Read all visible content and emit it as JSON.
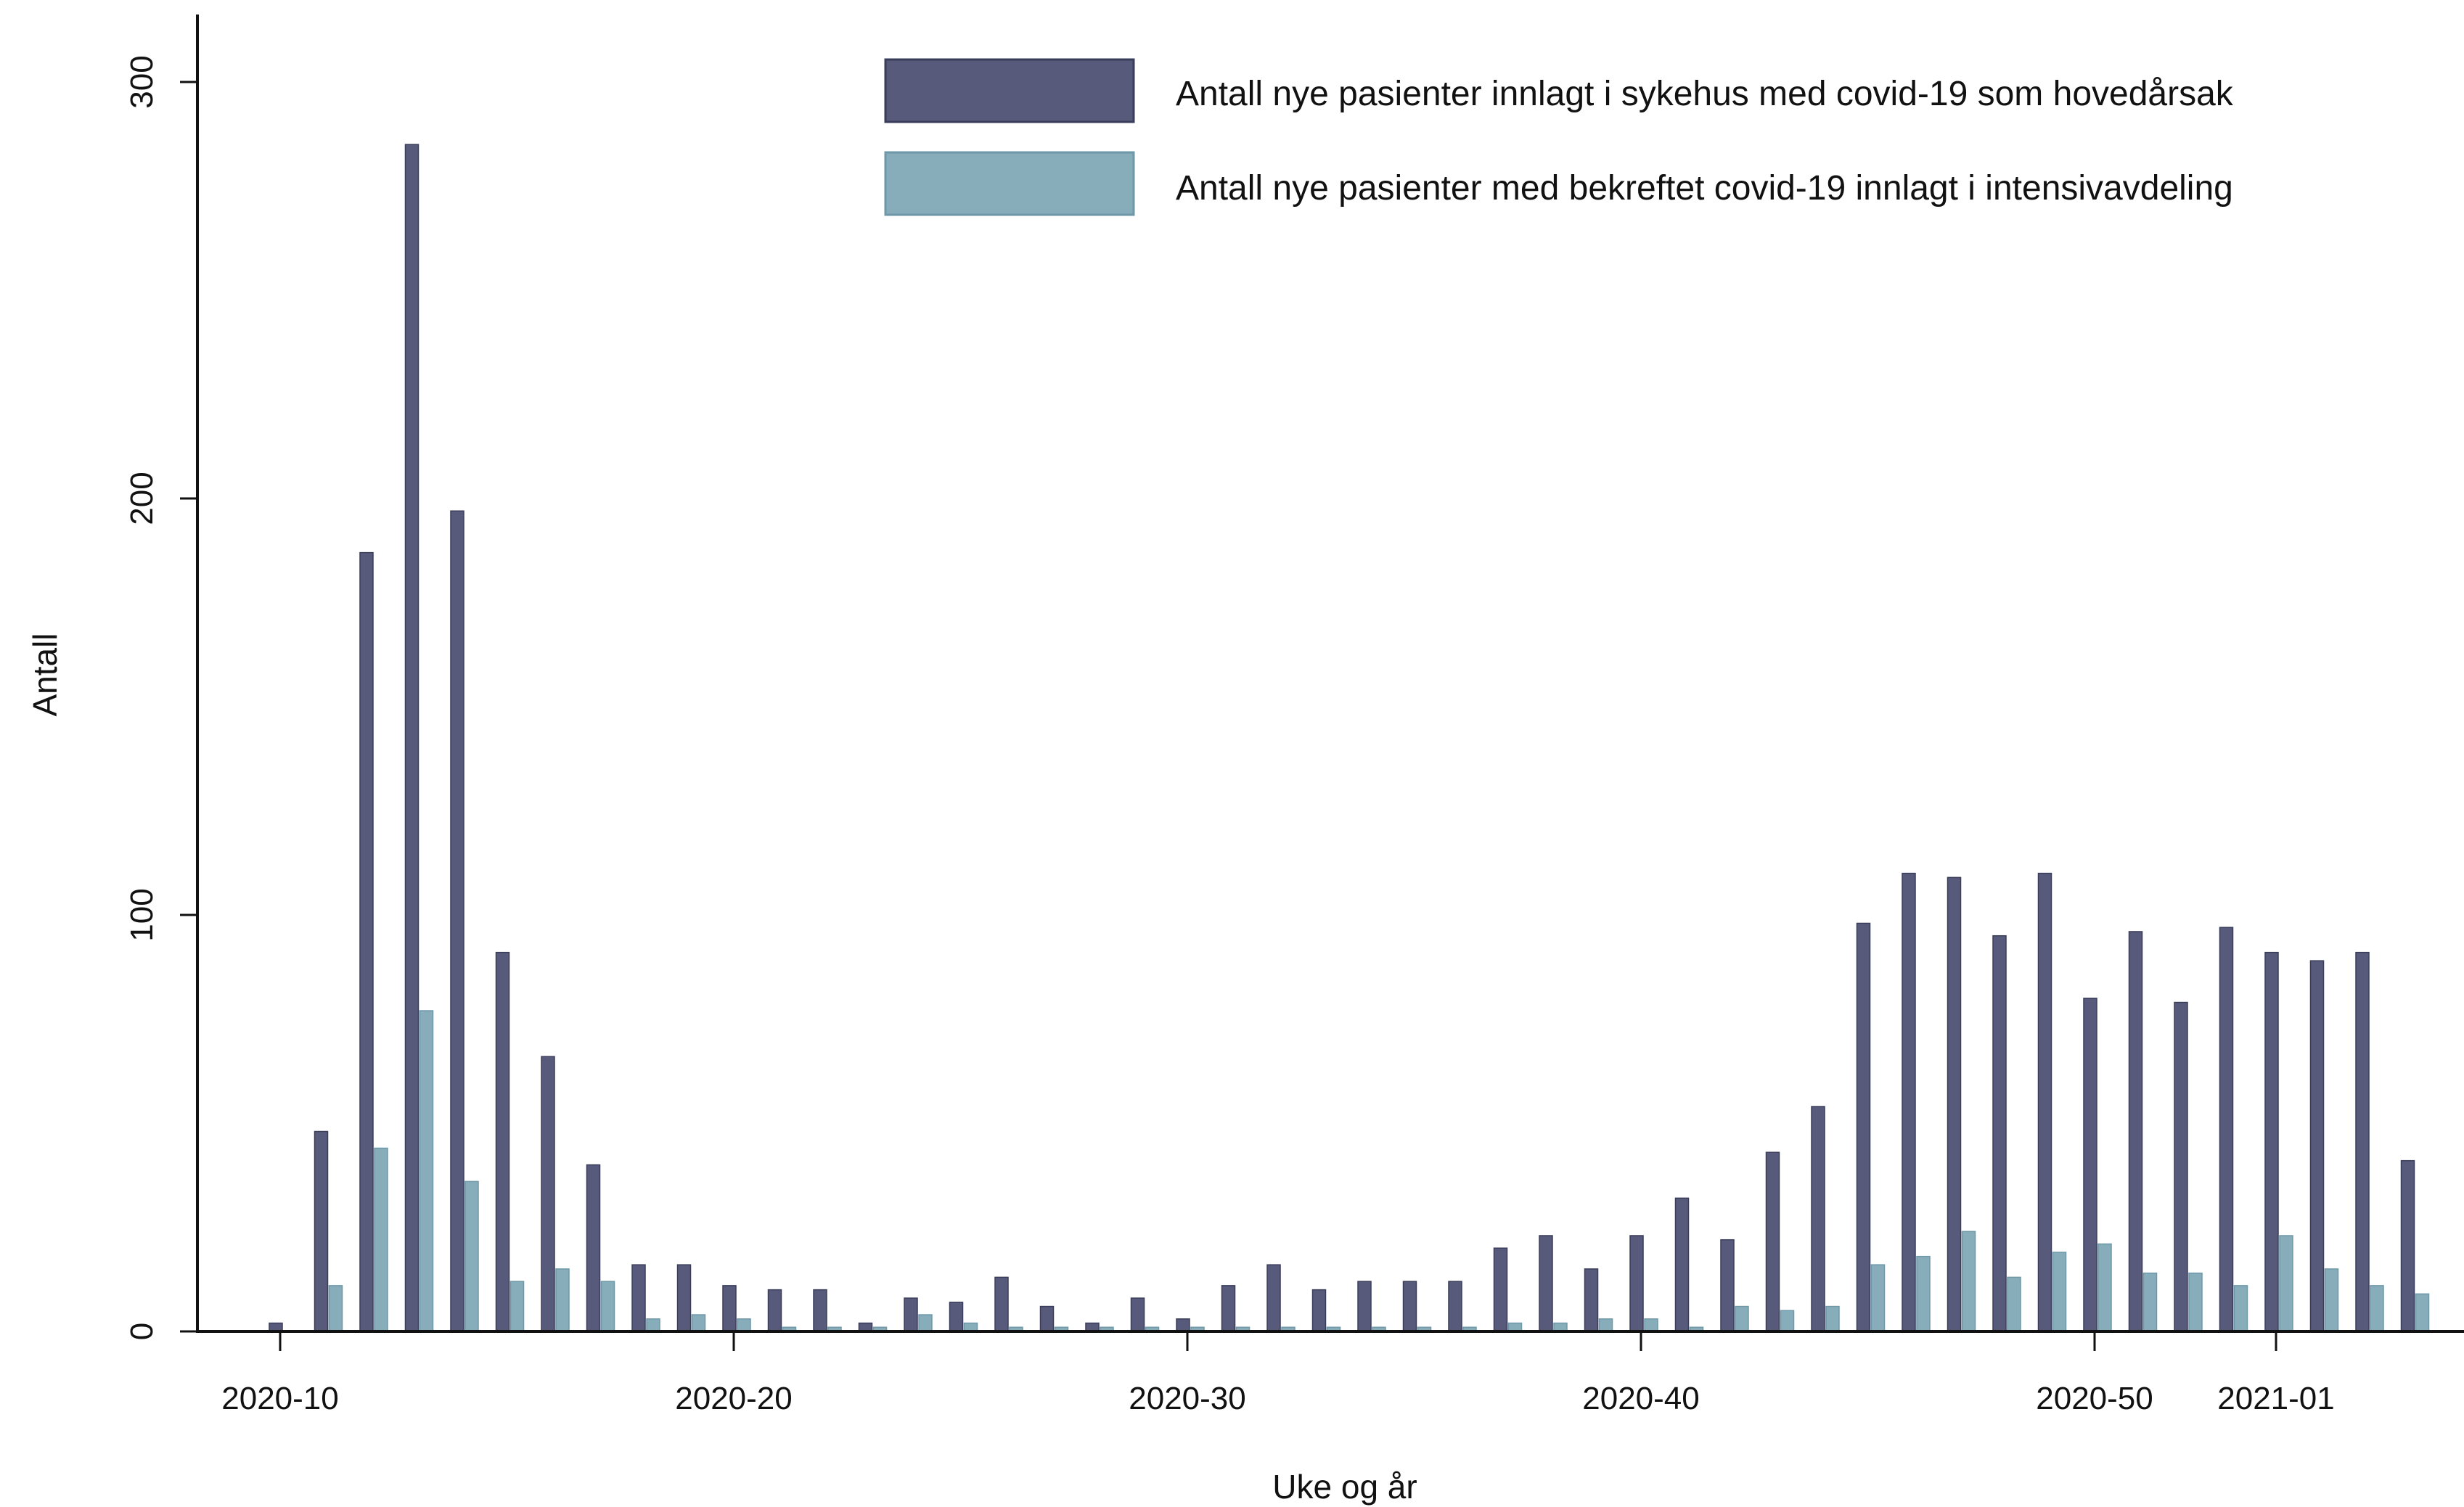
{
  "chart_data": {
    "type": "bar",
    "xlabel": "Uke og år",
    "ylabel": "Antall",
    "ylim": [
      0,
      320
    ],
    "yticks": [
      0,
      100,
      200,
      300
    ],
    "xtick_labels": [
      "2020-10",
      "2020-20",
      "2020-30",
      "2020-40",
      "2020-50",
      "2021-01"
    ],
    "legend_placement": "top-right",
    "categories": [
      "2020-10",
      "2020-11",
      "2020-12",
      "2020-13",
      "2020-14",
      "2020-15",
      "2020-16",
      "2020-17",
      "2020-18",
      "2020-19",
      "2020-20",
      "2020-21",
      "2020-22",
      "2020-23",
      "2020-24",
      "2020-25",
      "2020-26",
      "2020-27",
      "2020-28",
      "2020-29",
      "2020-30",
      "2020-31",
      "2020-32",
      "2020-33",
      "2020-34",
      "2020-35",
      "2020-36",
      "2020-37",
      "2020-38",
      "2020-39",
      "2020-40",
      "2020-41",
      "2020-42",
      "2020-43",
      "2020-44",
      "2020-45",
      "2020-46",
      "2020-47",
      "2020-48",
      "2020-49",
      "2020-50",
      "2020-51",
      "2020-52",
      "2020-53",
      "2021-01",
      "2021-02",
      "2021-03",
      "2021-04"
    ],
    "series": [
      {
        "name": "Antall nye pasienter innlagt i sykehus med covid-19 som hovedårsak",
        "color": "#575a7b",
        "values": [
          2,
          48,
          187,
          285,
          197,
          91,
          66,
          40,
          16,
          16,
          11,
          10,
          10,
          2,
          8,
          7,
          13,
          6,
          2,
          8,
          3,
          11,
          16,
          10,
          12,
          12,
          12,
          20,
          23,
          15,
          23,
          32,
          22,
          43,
          54,
          98,
          110,
          109,
          95,
          110,
          80,
          96,
          79,
          97,
          91,
          89,
          91,
          41
        ]
      },
      {
        "name": "Antall nye pasienter med bekreftet covid-19 innlagt i intensivavdeling",
        "color": "#87adbb",
        "values": [
          0,
          11,
          44,
          77,
          36,
          12,
          15,
          12,
          3,
          4,
          3,
          1,
          1,
          1,
          4,
          2,
          1,
          1,
          1,
          1,
          1,
          1,
          1,
          1,
          1,
          1,
          1,
          2,
          2,
          3,
          3,
          1,
          6,
          5,
          6,
          16,
          18,
          24,
          13,
          19,
          21,
          14,
          14,
          11,
          23,
          15,
          11,
          9
        ]
      }
    ]
  }
}
